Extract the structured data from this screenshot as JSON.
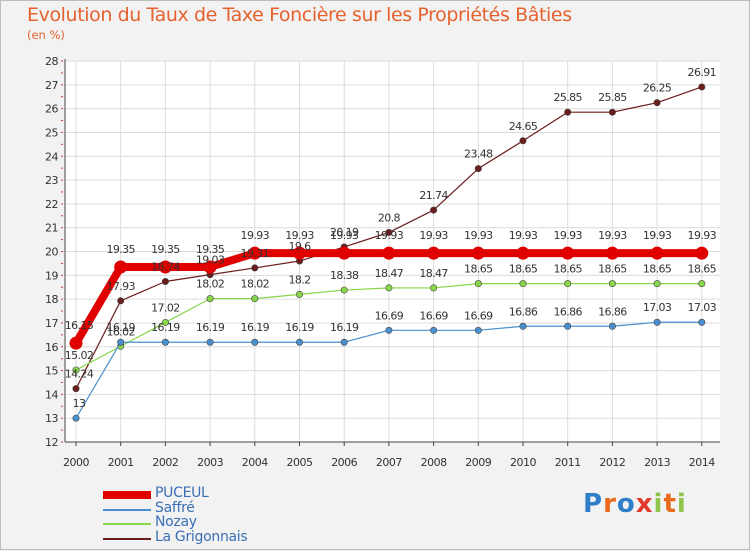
{
  "chart_data": {
    "type": "line",
    "title": "Evolution du Taux de Taxe Foncière sur les Propriétés Bâties",
    "ylabel": "(en %)",
    "xlabel": "",
    "categories": [
      "2000",
      "2001",
      "2002",
      "2003",
      "2004",
      "2005",
      "2006",
      "2007",
      "2008",
      "2009",
      "2010",
      "2011",
      "2012",
      "2013",
      "2014"
    ],
    "ylim": [
      12,
      28
    ],
    "yticks": [
      "12",
      "13",
      "14",
      "15",
      "16",
      "17",
      "18",
      "19",
      "20",
      "21",
      "22",
      "23",
      "24",
      "25",
      "26",
      "27",
      "28"
    ],
    "grid": true,
    "legend_position": "bottom-left",
    "series": [
      {
        "name": "PUCEUL",
        "color": "#e00000",
        "values": [
          16.15,
          19.35,
          19.35,
          19.35,
          19.93,
          19.93,
          19.93,
          19.93,
          19.93,
          19.93,
          19.93,
          19.93,
          19.93,
          19.93,
          19.93
        ],
        "labels": [
          "16.15",
          "19.35",
          "19.35",
          "19.35",
          "19.93",
          "19.93",
          "19.93",
          "19.93",
          "19.93",
          "19.93",
          "19.93",
          "19.93",
          "19.93",
          "19.93",
          "19.93"
        ]
      },
      {
        "name": "Saffré",
        "color": "#4a8fcf",
        "values": [
          13,
          16.19,
          16.19,
          16.19,
          16.19,
          16.19,
          16.19,
          16.69,
          16.69,
          16.69,
          16.86,
          16.86,
          16.86,
          17.03,
          17.03
        ],
        "labels": [
          "13",
          "16.19",
          "16.19",
          "16.19",
          "16.19",
          "16.19",
          "16.19",
          "16.69",
          "16.69",
          "16.69",
          "16.86",
          "16.86",
          "16.86",
          "17.03",
          "17.03"
        ]
      },
      {
        "name": "Nozay",
        "color": "#88d64a",
        "values": [
          15.02,
          16.02,
          17.02,
          18.02,
          18.02,
          18.2,
          18.38,
          18.47,
          18.47,
          18.65,
          18.65,
          18.65,
          18.65,
          18.65,
          18.65
        ],
        "labels": [
          "15.02",
          "16.02",
          "17.02",
          "18.02",
          "18.02",
          "18.2",
          "18.38",
          "18.47",
          "18.47",
          "18.65",
          "18.65",
          "18.65",
          "18.65",
          "18.65",
          "18.65"
        ]
      },
      {
        "name": "La Grigonnais",
        "color": "#6b1c1c",
        "values": [
          14.24,
          17.93,
          18.74,
          19.03,
          19.31,
          19.6,
          20.19,
          20.8,
          21.74,
          23.48,
          24.65,
          25.85,
          25.85,
          26.25,
          26.91
        ],
        "labels": [
          "14.24",
          "17.93",
          "18.74",
          "19.03",
          "19.31",
          "19.6",
          "20.19",
          "20.8",
          "21.74",
          "23.48",
          "24.65",
          "25.85",
          "25.85",
          "26.25",
          "26.91"
        ]
      }
    ]
  },
  "logo": {
    "letters": [
      "P",
      "r",
      "o",
      "x",
      "i",
      "t",
      "i"
    ],
    "colors": [
      "#2f7fc8",
      "#e96a1a",
      "#2f7fc8",
      "#e23b2e",
      "#8fc54a",
      "#e96a1a",
      "#8fc54a"
    ]
  }
}
